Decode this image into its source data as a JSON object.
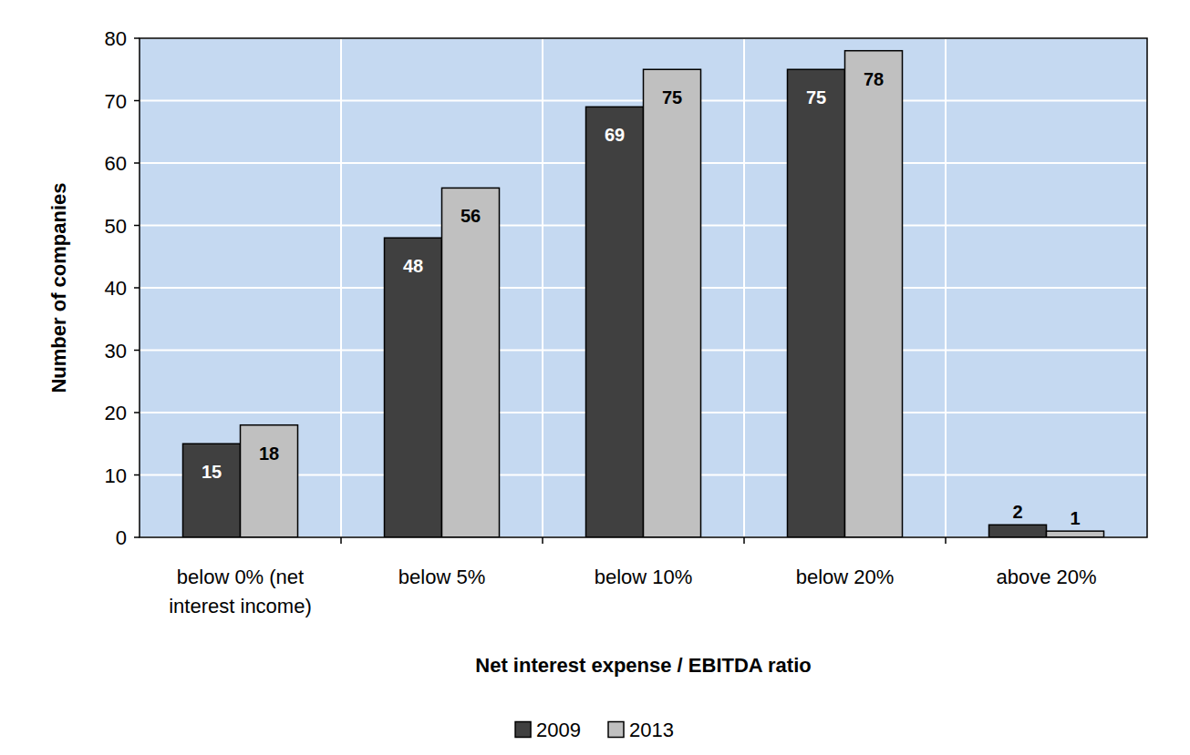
{
  "chart_data": {
    "type": "bar",
    "categories": [
      "below 0% (net interest income)",
      "below 5%",
      "below 10%",
      "below 20%",
      "above 20%"
    ],
    "series": [
      {
        "name": "2009",
        "color": "#404040",
        "values": [
          15,
          48,
          69,
          75,
          2
        ]
      },
      {
        "name": "2013",
        "color": "#c0c0c0",
        "values": [
          18,
          56,
          75,
          78,
          1
        ]
      }
    ],
    "x_label": "Net interest expense / EBITDA ratio",
    "y_label": "Number of companies",
    "ylim": [
      0,
      80
    ],
    "yticks": [
      0,
      10,
      20,
      30,
      40,
      50,
      60,
      70,
      80
    ],
    "grid": true,
    "data_labels": true,
    "legend": "bottom"
  }
}
